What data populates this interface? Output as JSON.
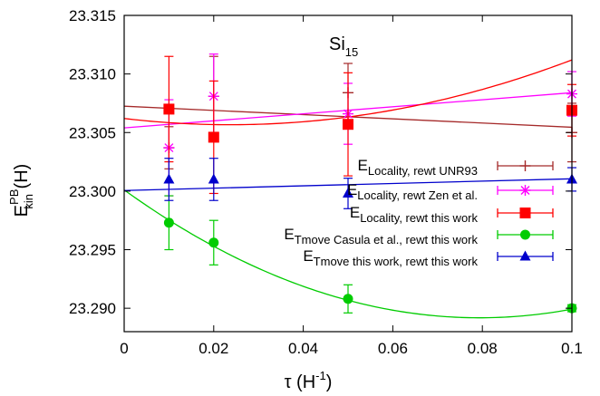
{
  "chart_data": {
    "type": "scatter",
    "title": "",
    "annotation": {
      "base": "Si",
      "sub": "15"
    },
    "xlabel": {
      "base": "τ (H",
      "sup": "-1",
      "tail": ")"
    },
    "ylabel": {
      "base": "E",
      "sup": "PB",
      "sub": "kin",
      "tail": " (H)"
    },
    "xlim": [
      0,
      0.1
    ],
    "ylim": [
      23.288,
      23.315
    ],
    "xticks": [
      "0",
      "0.02",
      "0.04",
      "0.06",
      "0.08",
      "0.1"
    ],
    "yticks": [
      "23.290",
      "23.295",
      "23.300",
      "23.305",
      "23.310",
      "23.315"
    ],
    "grid": false,
    "legend_position": "right",
    "series": [
      {
        "legend_main": "E",
        "legend_sub": "Locality, rewt UNR93",
        "marker": "plus",
        "color": "#a52a2a",
        "points": [
          {
            "x": 0.01,
            "y": 23.3037,
            "err": 0.0018
          },
          {
            "x": 0.02,
            "y": 23.3081,
            "err": 0.0034
          },
          {
            "x": 0.05,
            "y": 23.3084,
            "err": 0.0025
          },
          {
            "x": 0.1,
            "y": 23.305,
            "err": 0.0025
          }
        ],
        "fit": {
          "kind": "line",
          "x0": 0,
          "y0": 23.30725,
          "x1": 0.1,
          "y1": 23.30545
        }
      },
      {
        "legend_main": "E",
        "legend_sub": "Locality, rewt Zen et al.",
        "marker": "star",
        "color": "#ff00ff",
        "points": [
          {
            "x": 0.01,
            "y": 23.3037,
            "err": 0.0041
          },
          {
            "x": 0.02,
            "y": 23.3081,
            "err": 0.0036
          },
          {
            "x": 0.05,
            "y": 23.3066,
            "err": 0.0026
          },
          {
            "x": 0.1,
            "y": 23.3083,
            "err": 0.0019
          }
        ],
        "fit": {
          "kind": "line",
          "x0": 0,
          "y0": 23.3054,
          "x1": 0.1,
          "y1": 23.3084
        }
      },
      {
        "legend_main": "E",
        "legend_sub": "Locality, rewt this work",
        "marker": "square",
        "color": "#ff0000",
        "points": [
          {
            "x": 0.01,
            "y": 23.307,
            "err": 0.0045
          },
          {
            "x": 0.02,
            "y": 23.3046,
            "err": 0.0048
          },
          {
            "x": 0.05,
            "y": 23.3057,
            "err": 0.0044
          },
          {
            "x": 0.1,
            "y": 23.3069,
            "err": 0.0022
          }
        ],
        "fit": {
          "kind": "quadratic",
          "a": 23.3062,
          "b": -0.045,
          "c": 0.95
        }
      },
      {
        "legend_main": "E",
        "legend_sub": "Tmove Casula et al., rewt this work",
        "marker": "circle",
        "color": "#00cc00",
        "points": [
          {
            "x": 0.01,
            "y": 23.2973,
            "err": 0.0023
          },
          {
            "x": 0.02,
            "y": 23.2956,
            "err": 0.0019
          },
          {
            "x": 0.05,
            "y": 23.2908,
            "err": 0.0012
          },
          {
            "x": 0.1,
            "y": 23.29,
            "err": 0.0003
          }
        ],
        "fit": {
          "kind": "quadratic",
          "a": 23.3001,
          "b": -0.2751,
          "c": 1.7333
        }
      },
      {
        "legend_main": "E",
        "legend_sub": "Tmove this work, rewt this work",
        "marker": "triangle",
        "color": "#0000cc",
        "points": [
          {
            "x": 0.01,
            "y": 23.301,
            "err": 0.0018
          },
          {
            "x": 0.02,
            "y": 23.301,
            "err": 0.0018
          },
          {
            "x": 0.05,
            "y": 23.2998,
            "err": 0.0013
          },
          {
            "x": 0.1,
            "y": 23.301,
            "err": 0.001
          }
        ],
        "fit": {
          "kind": "line",
          "x0": 0,
          "y0": 23.30005,
          "x1": 0.1,
          "y1": 23.30105
        }
      }
    ]
  }
}
